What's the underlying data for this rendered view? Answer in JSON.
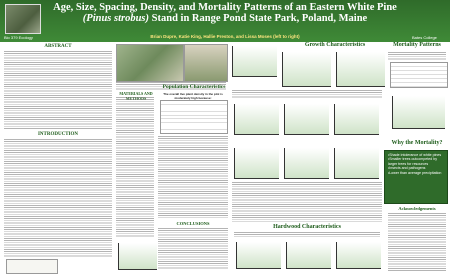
{
  "header": {
    "title": "Age, Size, Spacing, Density, and Mortality Patterns of an Eastern White Pine",
    "species": "(Pinus strobus)",
    "title_end": "Stand in Range Pond State Park, Poland, Maine",
    "authors": "Brian Dupre, Katie King, Hallie Preston, and Lissa Moses (left to right)",
    "course": "Bio 379 Ecology",
    "institution": "Bates College"
  },
  "sections": {
    "abstract": "ABSTRACT",
    "introduction": "INTRODUCTION",
    "methods": "MATERIALS AND METHODS",
    "population": "Population Characteristics",
    "growth": "Growth Characteristics",
    "mortality": "Mortality Patterns",
    "why": "Why the Mortality?",
    "hardwood": "Hardwood Characteristics",
    "conclusions": "CONCLUSIONS",
    "acknowledgements": "Acknowledgements"
  },
  "population": {
    "subtitle": "The overall live plant density in the plot is moderately high because:"
  },
  "why": [
    "•Shade intolerance of white pines",
    "•Smaller trees outcompeted by larger trees for resources",
    "•Insects and pathogens",
    "•Lower than average precipitation"
  ]
}
